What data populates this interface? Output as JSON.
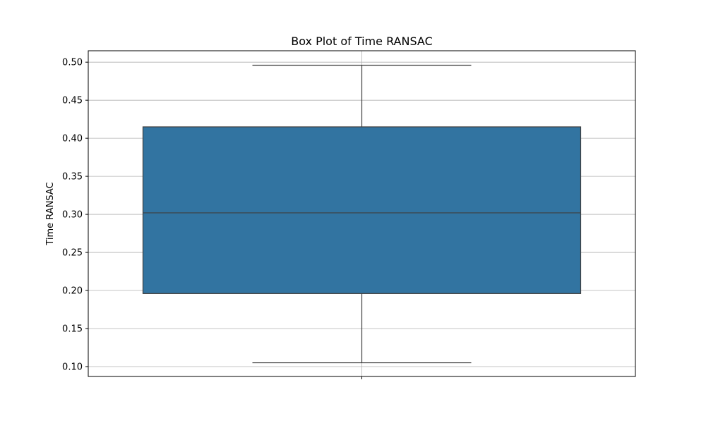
{
  "chart_data": {
    "type": "box",
    "title": "Box Plot of Time RANSAC",
    "xlabel": "",
    "ylabel": "Time RANSAC",
    "ylim": [
      0.087,
      0.515
    ],
    "yticks": [
      0.1,
      0.15,
      0.2,
      0.25,
      0.3,
      0.35,
      0.4,
      0.45,
      0.5
    ],
    "ytick_labels": [
      "0.10",
      "0.15",
      "0.20",
      "0.25",
      "0.30",
      "0.35",
      "0.40",
      "0.45",
      "0.50"
    ],
    "grid": true,
    "box": {
      "whisker_low": 0.105,
      "q1": 0.196,
      "median": 0.302,
      "q3": 0.415,
      "whisker_high": 0.496
    },
    "colors": {
      "box_fill": "#3274a1",
      "box_edge": "#3f3f3f",
      "grid": "#b0b0b0",
      "axes": "#000000"
    }
  }
}
